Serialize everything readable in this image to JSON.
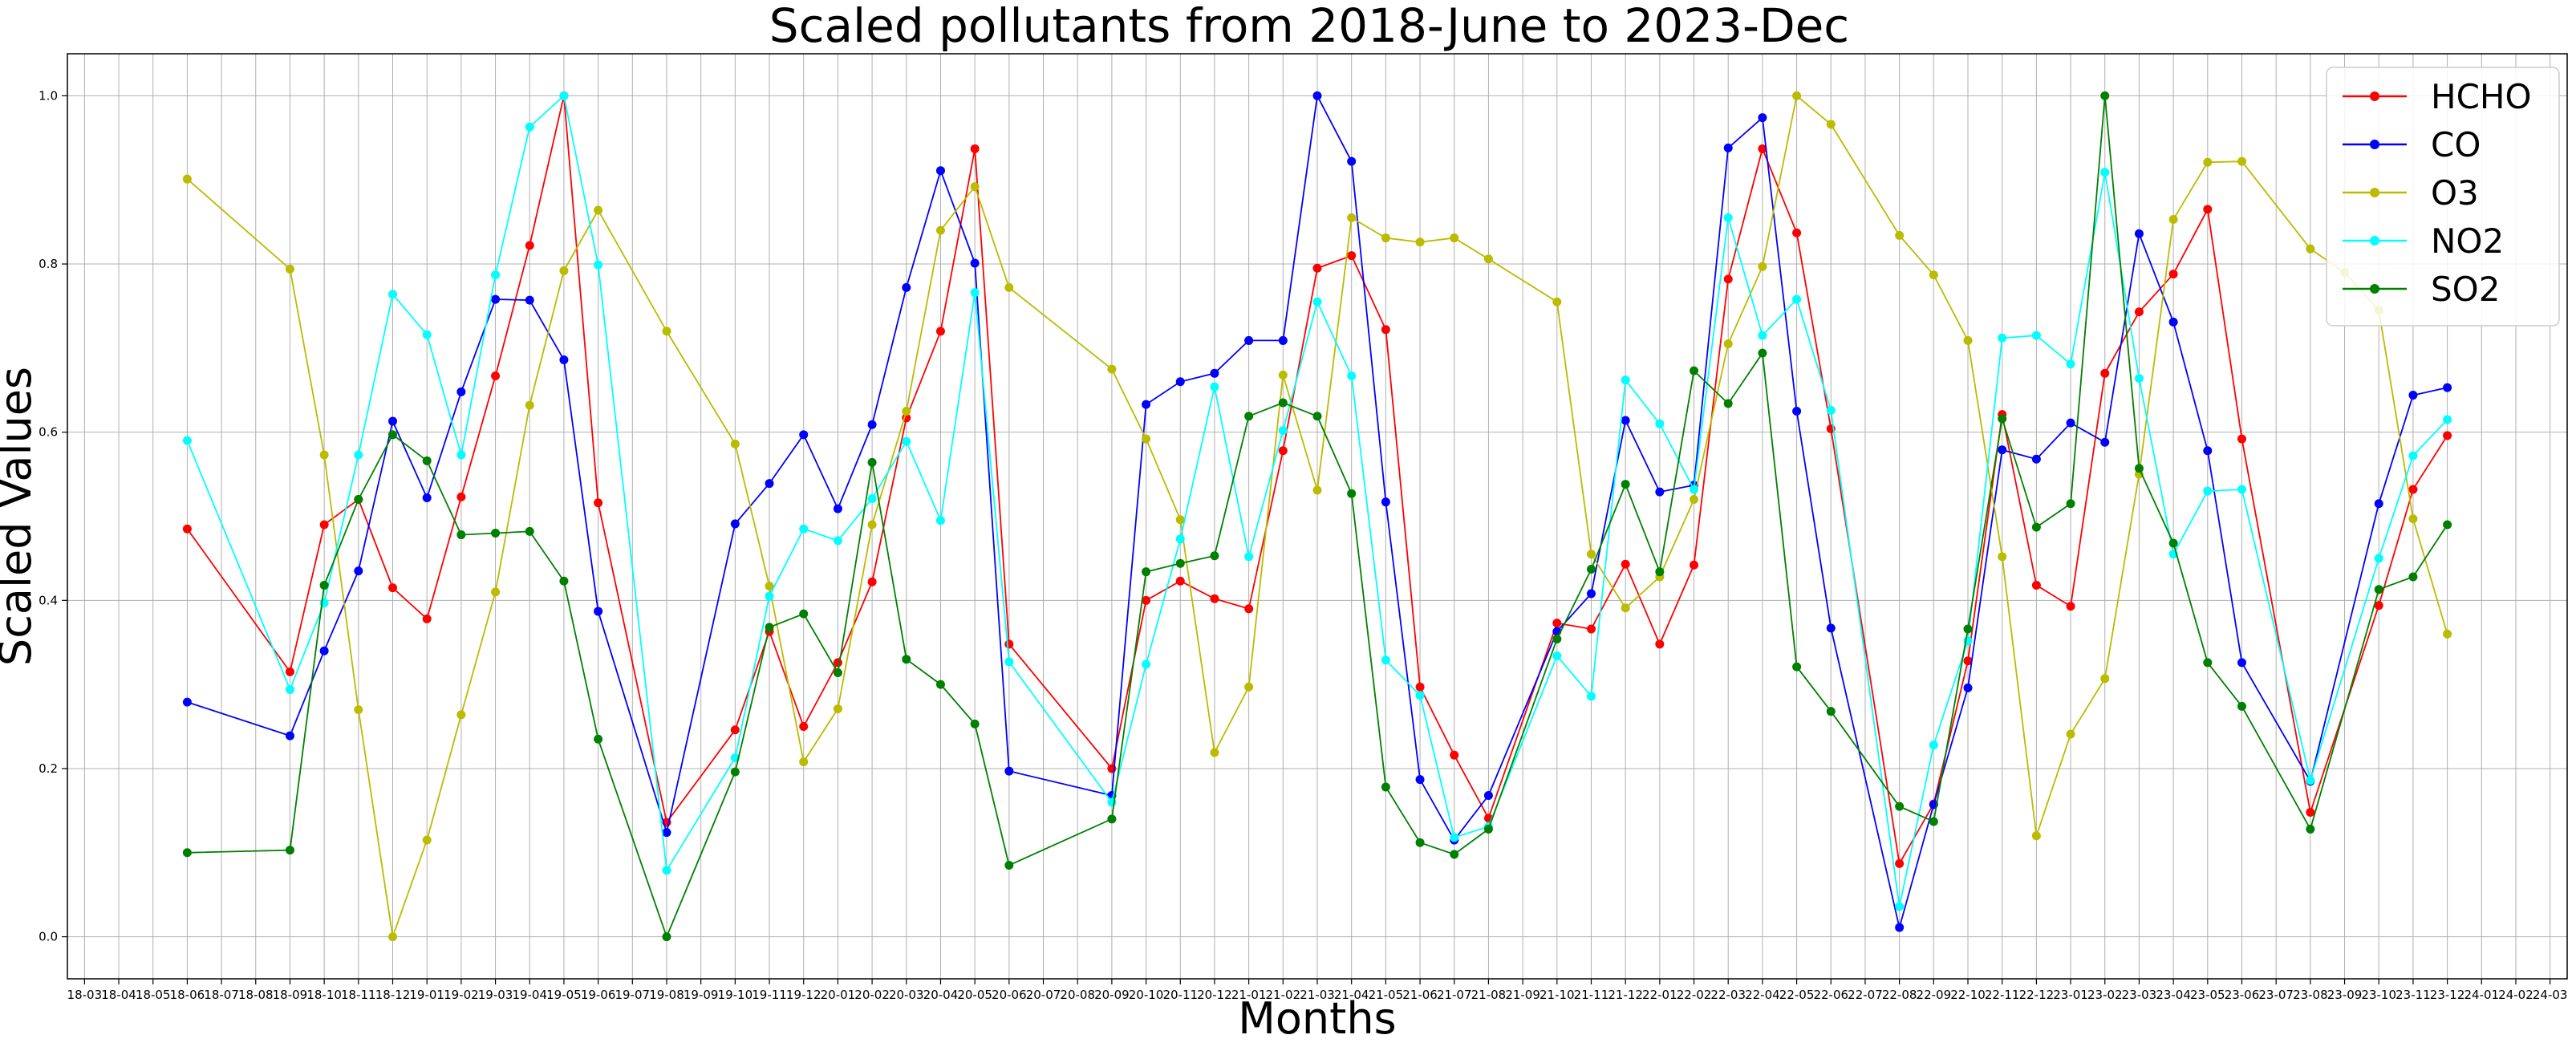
{
  "chart_data": {
    "type": "line",
    "title": "Scaled pollutants from 2018-June to 2023-Dec",
    "xlabel": "Months",
    "ylabel": "Scaled Values",
    "ylim": [
      -0.05,
      1.05
    ],
    "yticks": [
      "0.0",
      "0.2",
      "0.4",
      "0.6",
      "0.8",
      "1.0"
    ],
    "ytick_values": [
      0,
      0.2,
      0.4,
      0.6,
      0.8,
      1.0
    ],
    "grid": true,
    "legend_position": "top-right",
    "categories": [
      "18-03",
      "18-04",
      "18-05",
      "18-06",
      "18-07",
      "18-08",
      "18-09",
      "18-10",
      "18-11",
      "18-12",
      "19-01",
      "19-02",
      "19-03",
      "19-04",
      "19-05",
      "19-06",
      "19-07",
      "19-08",
      "19-09",
      "19-10",
      "19-11",
      "19-12",
      "20-01",
      "20-02",
      "20-03",
      "20-04",
      "20-05",
      "20-06",
      "20-07",
      "20-08",
      "20-09",
      "20-10",
      "20-11",
      "20-12",
      "21-01",
      "21-02",
      "21-03",
      "21-04",
      "21-05",
      "21-06",
      "21-07",
      "21-08",
      "21-09",
      "21-10",
      "21-11",
      "21-12",
      "22-01",
      "22-02",
      "22-03",
      "22-04",
      "22-05",
      "22-06",
      "22-07",
      "22-08",
      "22-09",
      "22-10",
      "22-11",
      "22-12",
      "23-01",
      "23-02",
      "23-03",
      "23-04",
      "23-05",
      "23-06",
      "23-07",
      "23-08",
      "23-09",
      "23-10",
      "23-11",
      "23-12",
      "24-01",
      "24-02",
      "24-03"
    ],
    "series": [
      {
        "name": "HCHO",
        "color": "#ff0000",
        "points": [
          [
            3,
            0.485
          ],
          [
            6,
            0.315
          ],
          [
            7,
            0.49
          ],
          [
            8,
            0.52
          ],
          [
            9,
            0.415
          ],
          [
            10,
            0.378
          ],
          [
            11,
            0.523
          ],
          [
            12,
            0.667
          ],
          [
            13,
            0.822
          ],
          [
            14,
            1.0
          ],
          [
            15,
            0.516
          ],
          [
            17,
            0.136
          ],
          [
            19,
            0.246
          ],
          [
            20,
            0.363
          ],
          [
            21,
            0.25
          ],
          [
            22,
            0.326
          ],
          [
            23,
            0.422
          ],
          [
            24,
            0.617
          ],
          [
            25,
            0.72
          ],
          [
            26,
            0.937
          ],
          [
            27,
            0.348
          ],
          [
            30,
            0.2
          ],
          [
            31,
            0.4
          ],
          [
            32,
            0.423
          ],
          [
            33,
            0.402
          ],
          [
            34,
            0.39
          ],
          [
            35,
            0.578
          ],
          [
            36,
            0.795
          ],
          [
            37,
            0.81
          ],
          [
            38,
            0.722
          ],
          [
            39,
            0.297
          ],
          [
            40,
            0.216
          ],
          [
            41,
            0.141
          ],
          [
            43,
            0.373
          ],
          [
            44,
            0.366
          ],
          [
            45,
            0.443
          ],
          [
            46,
            0.348
          ],
          [
            47,
            0.442
          ],
          [
            48,
            0.782
          ],
          [
            49,
            0.937
          ],
          [
            50,
            0.837
          ],
          [
            51,
            0.604
          ],
          [
            53,
            0.087
          ],
          [
            54,
            0.158
          ],
          [
            55,
            0.328
          ],
          [
            56,
            0.621
          ],
          [
            57,
            0.418
          ],
          [
            58,
            0.393
          ],
          [
            59,
            0.67
          ],
          [
            60,
            0.743
          ],
          [
            61,
            0.788
          ],
          [
            62,
            0.865
          ],
          [
            63,
            0.592
          ],
          [
            65,
            0.148
          ],
          [
            67,
            0.394
          ],
          [
            68,
            0.532
          ],
          [
            69,
            0.596
          ]
        ]
      },
      {
        "name": "CO",
        "color": "#0000ff",
        "points": [
          [
            3,
            0.279
          ],
          [
            6,
            0.239
          ],
          [
            7,
            0.34
          ],
          [
            8,
            0.435
          ],
          [
            9,
            0.613
          ],
          [
            10,
            0.522
          ],
          [
            11,
            0.648
          ],
          [
            12,
            0.758
          ],
          [
            13,
            0.757
          ],
          [
            14,
            0.686
          ],
          [
            15,
            0.387
          ],
          [
            17,
            0.124
          ],
          [
            19,
            0.491
          ],
          [
            20,
            0.539
          ],
          [
            21,
            0.597
          ],
          [
            22,
            0.509
          ],
          [
            23,
            0.609
          ],
          [
            24,
            0.772
          ],
          [
            25,
            0.911
          ],
          [
            26,
            0.801
          ],
          [
            27,
            0.197
          ],
          [
            30,
            0.168
          ],
          [
            31,
            0.633
          ],
          [
            32,
            0.66
          ],
          [
            33,
            0.67
          ],
          [
            34,
            0.709
          ],
          [
            35,
            0.709
          ],
          [
            36,
            1.0
          ],
          [
            37,
            0.922
          ],
          [
            38,
            0.517
          ],
          [
            39,
            0.187
          ],
          [
            40,
            0.115
          ],
          [
            41,
            0.168
          ],
          [
            43,
            0.363
          ],
          [
            44,
            0.408
          ],
          [
            45,
            0.614
          ],
          [
            46,
            0.529
          ],
          [
            47,
            0.537
          ],
          [
            48,
            0.938
          ],
          [
            49,
            0.974
          ],
          [
            50,
            0.625
          ],
          [
            51,
            0.367
          ],
          [
            53,
            0.011
          ],
          [
            54,
            0.157
          ],
          [
            55,
            0.296
          ],
          [
            56,
            0.579
          ],
          [
            57,
            0.568
          ],
          [
            58,
            0.611
          ],
          [
            59,
            0.588
          ],
          [
            60,
            0.836
          ],
          [
            61,
            0.731
          ],
          [
            62,
            0.578
          ],
          [
            63,
            0.326
          ],
          [
            65,
            0.185
          ],
          [
            67,
            0.515
          ],
          [
            68,
            0.644
          ],
          [
            69,
            0.653
          ]
        ]
      },
      {
        "name": "O3",
        "color": "#bbbb00",
        "points": [
          [
            3,
            0.901
          ],
          [
            6,
            0.794
          ],
          [
            7,
            0.573
          ],
          [
            8,
            0.27
          ],
          [
            9,
            0.0
          ],
          [
            10,
            0.115
          ],
          [
            11,
            0.264
          ],
          [
            12,
            0.41
          ],
          [
            13,
            0.632
          ],
          [
            14,
            0.792
          ],
          [
            15,
            0.864
          ],
          [
            17,
            0.72
          ],
          [
            19,
            0.586
          ],
          [
            20,
            0.417
          ],
          [
            21,
            0.208
          ],
          [
            22,
            0.271
          ],
          [
            23,
            0.49
          ],
          [
            24,
            0.625
          ],
          [
            25,
            0.84
          ],
          [
            26,
            0.892
          ],
          [
            27,
            0.772
          ],
          [
            30,
            0.675
          ],
          [
            31,
            0.592
          ],
          [
            32,
            0.496
          ],
          [
            33,
            0.219
          ],
          [
            34,
            0.297
          ],
          [
            35,
            0.668
          ],
          [
            36,
            0.531
          ],
          [
            37,
            0.855
          ],
          [
            38,
            0.831
          ],
          [
            39,
            0.826
          ],
          [
            40,
            0.831
          ],
          [
            41,
            0.806
          ],
          [
            43,
            0.755
          ],
          [
            44,
            0.455
          ],
          [
            45,
            0.391
          ],
          [
            46,
            0.428
          ],
          [
            47,
            0.52
          ],
          [
            48,
            0.705
          ],
          [
            49,
            0.797
          ],
          [
            50,
            1.0
          ],
          [
            51,
            0.966
          ],
          [
            53,
            0.834
          ],
          [
            54,
            0.787
          ],
          [
            55,
            0.709
          ],
          [
            56,
            0.452
          ],
          [
            57,
            0.12
          ],
          [
            58,
            0.241
          ],
          [
            59,
            0.307
          ],
          [
            60,
            0.55
          ],
          [
            61,
            0.853
          ],
          [
            62,
            0.921
          ],
          [
            63,
            0.922
          ],
          [
            65,
            0.818
          ],
          [
            66,
            0.79
          ],
          [
            67,
            0.745
          ],
          [
            68,
            0.497
          ],
          [
            69,
            0.36
          ]
        ]
      },
      {
        "name": "NO2",
        "color": "#00ffff",
        "points": [
          [
            3,
            0.59
          ],
          [
            6,
            0.294
          ],
          [
            7,
            0.397
          ],
          [
            8,
            0.573
          ],
          [
            9,
            0.764
          ],
          [
            10,
            0.716
          ],
          [
            11,
            0.573
          ],
          [
            12,
            0.787
          ],
          [
            13,
            0.963
          ],
          [
            14,
            1.0
          ],
          [
            15,
            0.799
          ],
          [
            17,
            0.079
          ],
          [
            19,
            0.213
          ],
          [
            20,
            0.405
          ],
          [
            21,
            0.485
          ],
          [
            22,
            0.471
          ],
          [
            23,
            0.521
          ],
          [
            24,
            0.589
          ],
          [
            25,
            0.495
          ],
          [
            26,
            0.766
          ],
          [
            27,
            0.327
          ],
          [
            30,
            0.16
          ],
          [
            31,
            0.324
          ],
          [
            32,
            0.473
          ],
          [
            33,
            0.654
          ],
          [
            34,
            0.452
          ],
          [
            35,
            0.602
          ],
          [
            36,
            0.755
          ],
          [
            37,
            0.667
          ],
          [
            38,
            0.329
          ],
          [
            39,
            0.287
          ],
          [
            40,
            0.118
          ],
          [
            41,
            0.131
          ],
          [
            43,
            0.334
          ],
          [
            44,
            0.286
          ],
          [
            45,
            0.662
          ],
          [
            46,
            0.61
          ],
          [
            47,
            0.532
          ],
          [
            48,
            0.855
          ],
          [
            49,
            0.715
          ],
          [
            50,
            0.758
          ],
          [
            51,
            0.626
          ],
          [
            53,
            0.036
          ],
          [
            54,
            0.228
          ],
          [
            55,
            0.352
          ],
          [
            56,
            0.712
          ],
          [
            57,
            0.715
          ],
          [
            58,
            0.681
          ],
          [
            59,
            0.909
          ],
          [
            60,
            0.664
          ],
          [
            61,
            0.455
          ],
          [
            62,
            0.53
          ],
          [
            63,
            0.532
          ],
          [
            65,
            0.186
          ],
          [
            67,
            0.45
          ],
          [
            68,
            0.572
          ],
          [
            69,
            0.615
          ]
        ]
      },
      {
        "name": "SO2",
        "color": "#008000",
        "points": [
          [
            3,
            0.1
          ],
          [
            6,
            0.103
          ],
          [
            7,
            0.418
          ],
          [
            8,
            0.52
          ],
          [
            9,
            0.597
          ],
          [
            10,
            0.566
          ],
          [
            11,
            0.478
          ],
          [
            12,
            0.48
          ],
          [
            13,
            0.482
          ],
          [
            14,
            0.423
          ],
          [
            15,
            0.235
          ],
          [
            17,
            0.0
          ],
          [
            19,
            0.196
          ],
          [
            20,
            0.368
          ],
          [
            21,
            0.384
          ],
          [
            22,
            0.314
          ],
          [
            23,
            0.564
          ],
          [
            24,
            0.33
          ],
          [
            25,
            0.3
          ],
          [
            26,
            0.253
          ],
          [
            27,
            0.085
          ],
          [
            30,
            0.14
          ],
          [
            31,
            0.434
          ],
          [
            32,
            0.444
          ],
          [
            33,
            0.453
          ],
          [
            34,
            0.619
          ],
          [
            35,
            0.635
          ],
          [
            36,
            0.619
          ],
          [
            37,
            0.527
          ],
          [
            38,
            0.178
          ],
          [
            39,
            0.112
          ],
          [
            40,
            0.098
          ],
          [
            41,
            0.128
          ],
          [
            43,
            0.354
          ],
          [
            44,
            0.437
          ],
          [
            45,
            0.538
          ],
          [
            46,
            0.434
          ],
          [
            47,
            0.673
          ],
          [
            48,
            0.634
          ],
          [
            49,
            0.694
          ],
          [
            50,
            0.321
          ],
          [
            51,
            0.268
          ],
          [
            53,
            0.155
          ],
          [
            54,
            0.137
          ],
          [
            55,
            0.366
          ],
          [
            56,
            0.616
          ],
          [
            57,
            0.487
          ],
          [
            58,
            0.515
          ],
          [
            59,
            1.0
          ],
          [
            60,
            0.557
          ],
          [
            61,
            0.468
          ],
          [
            62,
            0.326
          ],
          [
            63,
            0.274
          ],
          [
            65,
            0.128
          ],
          [
            67,
            0.413
          ],
          [
            68,
            0.428
          ],
          [
            69,
            0.49
          ]
        ]
      }
    ]
  }
}
